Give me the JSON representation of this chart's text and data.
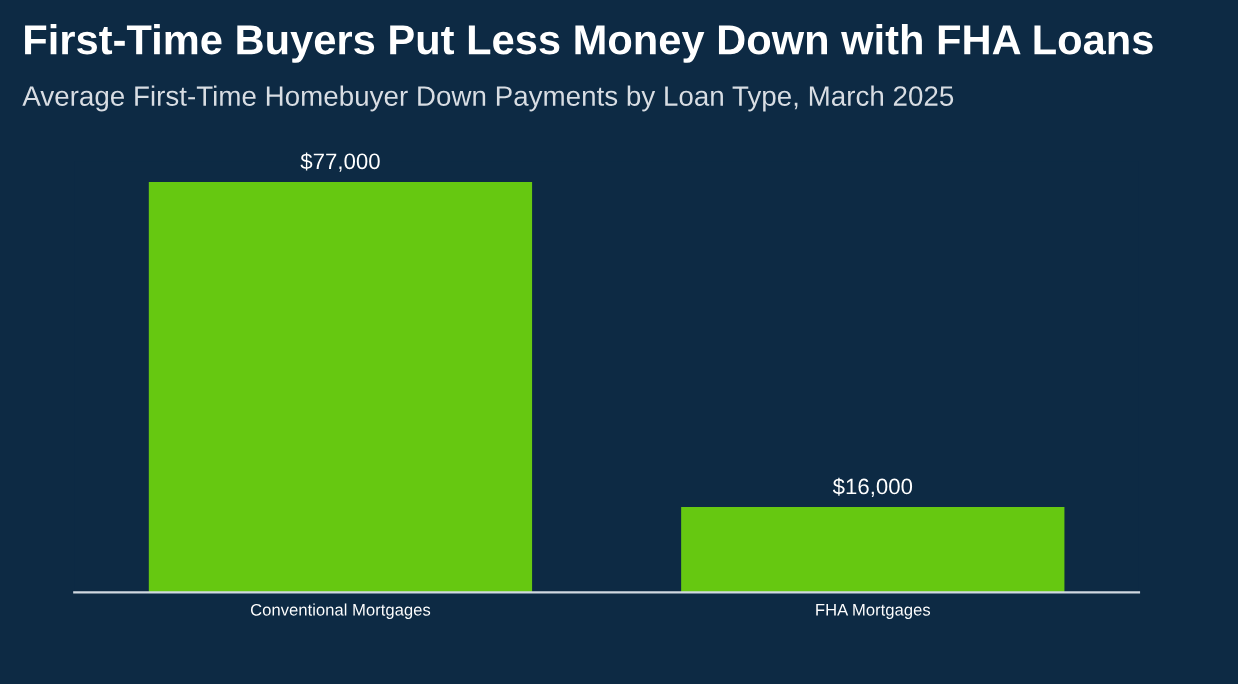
{
  "chart_data": {
    "type": "bar",
    "title": "First-Time Buyers Put Less Money Down with FHA Loans",
    "subtitle": "Average First-Time Homebuyer Down Payments by Loan Type, March 2025",
    "categories": [
      "Conventional Mortgages",
      "FHA Mortgages"
    ],
    "values": [
      77000,
      16000
    ],
    "value_labels": [
      "$77,000",
      "$16,000"
    ],
    "color": "#66c811",
    "grid": false,
    "legend": false
  }
}
